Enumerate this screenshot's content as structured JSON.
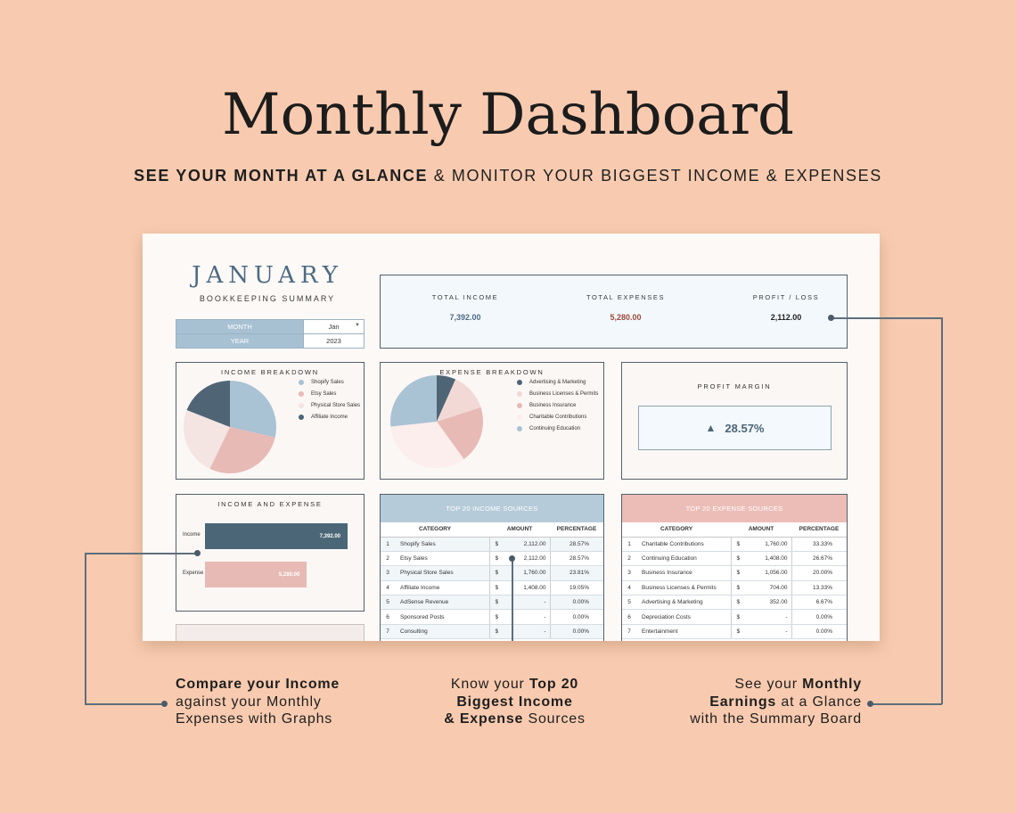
{
  "hero": {
    "title": "Monthly Dashboard",
    "subtitle_bold": "SEE YOUR MONTH AT A GLANCE",
    "subtitle_rest": " & MONITOR YOUR BIGGEST INCOME & EXPENSES"
  },
  "sheet": {
    "month_title": "JANUARY",
    "month_subtitle": "BOOKKEEPING SUMMARY",
    "selector": {
      "month_label": "MONTH",
      "month_value": "Jan",
      "year_label": "YEAR",
      "year_value": "2023"
    },
    "summary": {
      "income_label": "TOTAL INCOME",
      "income_value": "7,392.00",
      "expenses_label": "TOTAL EXPENSES",
      "expenses_value": "5,280.00",
      "profit_label": "PROFIT / LOSS",
      "profit_value": "2,112.00"
    },
    "income_breakdown": {
      "title": "INCOME BREAKDOWN",
      "legend": [
        "Shopify Sales",
        "Etsy Sales",
        "Physical Store Sales",
        "Affiliate Income"
      ]
    },
    "expense_breakdown": {
      "title": "EXPENSE BREAKDOWN",
      "legend": [
        "Advertising & Marketing",
        "Business Licenses & Permits",
        "Business Insurance",
        "Charitable Contributions",
        "Continuing Education"
      ]
    },
    "profit_margin": {
      "title": "PROFIT MARGIN",
      "arrow": "▲",
      "value": "28.57%"
    },
    "income_expense": {
      "title": "INCOME AND EXPENSE",
      "income_label": "Income",
      "income_value": "7,392.00",
      "expense_label": "Expense",
      "expense_value": "5,280.00"
    },
    "top_income": {
      "title": "TOP 20 INCOME SOURCES",
      "headers": [
        "CATEGORY",
        "AMOUNT",
        "PERCENTAGE"
      ],
      "rows": [
        {
          "n": "1",
          "cat": "Shopify Sales",
          "cur": "$",
          "amt": "2,112.00",
          "pct": "28.57%"
        },
        {
          "n": "2",
          "cat": "Etsy Sales",
          "cur": "$",
          "amt": "2,112.00",
          "pct": "28.57%"
        },
        {
          "n": "3",
          "cat": "Physical Store Sales",
          "cur": "$",
          "amt": "1,760.00",
          "pct": "23.81%"
        },
        {
          "n": "4",
          "cat": "Affiliate Income",
          "cur": "$",
          "amt": "1,408.00",
          "pct": "19.05%"
        },
        {
          "n": "5",
          "cat": "AdSense Revenue",
          "cur": "$",
          "amt": "-",
          "pct": "0.00%"
        },
        {
          "n": "6",
          "cat": "Sponsored Posts",
          "cur": "$",
          "amt": "-",
          "pct": "0.00%"
        },
        {
          "n": "7",
          "cat": "Consulting",
          "cur": "$",
          "amt": "-",
          "pct": "0.00%"
        }
      ]
    },
    "top_expense": {
      "title": "TOP 20 EXPENSE SOURCES",
      "headers": [
        "CATEGORY",
        "AMOUNT",
        "PERCENTAGE"
      ],
      "rows": [
        {
          "n": "1",
          "cat": "Charitable Contributions",
          "cur": "$",
          "amt": "1,760.00",
          "pct": "33.33%"
        },
        {
          "n": "2",
          "cat": "Continuing Education",
          "cur": "$",
          "amt": "1,408.00",
          "pct": "26.67%"
        },
        {
          "n": "3",
          "cat": "Business Insurance",
          "cur": "$",
          "amt": "1,056.00",
          "pct": "20.00%"
        },
        {
          "n": "4",
          "cat": "Business Licenses & Permits",
          "cur": "$",
          "amt": "704.00",
          "pct": "13.33%"
        },
        {
          "n": "5",
          "cat": "Advertising & Marketing",
          "cur": "$",
          "amt": "352.00",
          "pct": "6.67%"
        },
        {
          "n": "6",
          "cat": "Depreciation Costs",
          "cur": "$",
          "amt": "-",
          "pct": "0.00%"
        },
        {
          "n": "7",
          "cat": "Entertainment",
          "cur": "$",
          "amt": "-",
          "pct": "0.00%"
        }
      ]
    }
  },
  "callouts": {
    "left_bold": "Compare your Income",
    "left_rest1": "against your Monthly",
    "left_rest2": "Expenses with Graphs",
    "mid_1a": "Know your ",
    "mid_1b": "Top 20",
    "mid_2": "Biggest Income",
    "mid_3a": "& Expense",
    "mid_3b": " Sources",
    "right_1a": "See your ",
    "right_1b": "Monthly",
    "right_2a": "Earnings",
    "right_2b": " at a Glance",
    "right_3": "with the Summary Board"
  },
  "colors": {
    "background": "#f8cbb0",
    "navy": "#4b6777",
    "slate_dark": "#4f6575",
    "blue_light": "#a9c2d4",
    "rose": "#e7bab5",
    "rose_light": "#f2d9d6",
    "blush": "#f5e6e4",
    "income_header": "#b5cbd9",
    "expense_header": "#ecbdb7",
    "income_value": "#4f6b82",
    "expense_value": "#9b4a3b",
    "profit_value": "#1f1f1f"
  },
  "chart_data": [
    {
      "type": "pie",
      "title": "INCOME BREAKDOWN",
      "categories": [
        "Shopify Sales",
        "Etsy Sales",
        "Physical Store Sales",
        "Affiliate Income"
      ],
      "values": [
        28.57,
        28.57,
        23.81,
        19.05
      ],
      "colors": [
        "#a9c2d4",
        "#e7bab5",
        "#f4e4e2",
        "#4f6575"
      ]
    },
    {
      "type": "pie",
      "title": "EXPENSE BREAKDOWN",
      "categories": [
        "Advertising & Marketing",
        "Business Licenses & Permits",
        "Business Insurance",
        "Charitable Contributions",
        "Continuing Education"
      ],
      "values": [
        6.67,
        13.33,
        20.0,
        33.33,
        26.67
      ],
      "colors": [
        "#4f6575",
        "#f2d9d6",
        "#e7bab5",
        "#fbeeed",
        "#a9c2d4"
      ]
    },
    {
      "type": "bar",
      "title": "INCOME AND EXPENSE",
      "categories": [
        "Income",
        "Expense"
      ],
      "values": [
        7392,
        5280
      ],
      "colors": [
        "#4b6777",
        "#e7bab5"
      ]
    }
  ]
}
